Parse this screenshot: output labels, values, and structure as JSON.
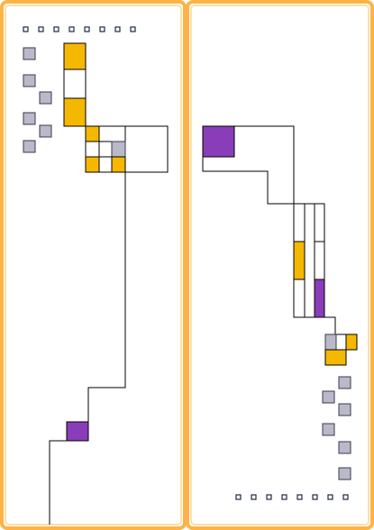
{
  "colors": {
    "frame_outer": "#ffb347",
    "frame_inner": "#ffe0a8",
    "background": "#ffffff",
    "stroke": "#000000",
    "gray_block": "#b9b9c9",
    "gray_block_stroke": "#3a3a4a",
    "orange_block": "#f5b800",
    "purple_block": "#8a3db8",
    "dot": "#ffffff",
    "dot_stroke": "#1e2a44"
  },
  "panels": [
    {
      "name": "left-panel"
    },
    {
      "name": "right-panel"
    }
  ]
}
